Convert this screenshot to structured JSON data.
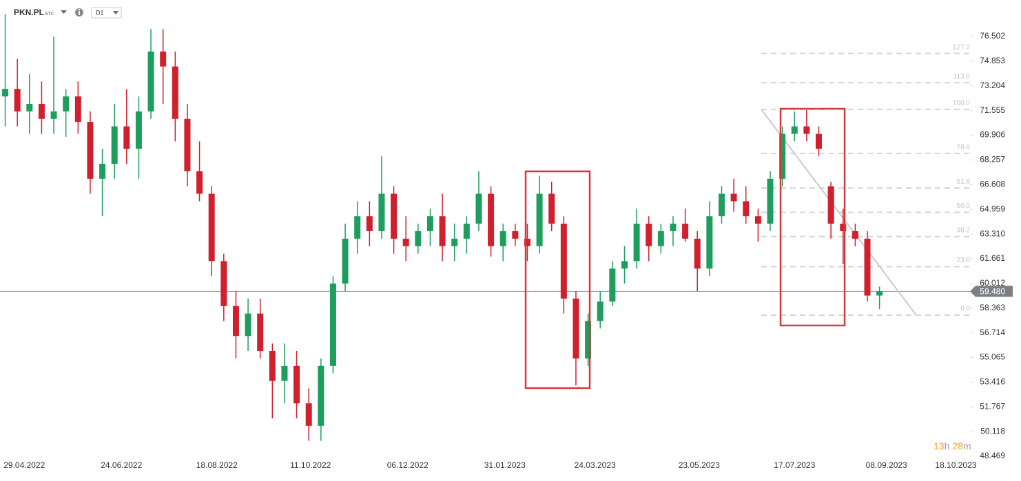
{
  "header": {
    "symbol": "PKN.PL",
    "market": "STC",
    "interval": "D1"
  },
  "chart_data": {
    "type": "candlestick",
    "x": [
      "18.04.2022",
      "25.04.2022",
      "02.05.2022",
      "09.05.2022",
      "16.05.2022",
      "23.05.2022",
      "30.05.2022",
      "06.06.2022",
      "13.06.2022",
      "20.06.2022",
      "27.06.2022",
      "04.07.2022",
      "11.07.2022",
      "18.07.2022",
      "25.07.2022",
      "01.08.2022",
      "08.08.2022",
      "15.08.2022",
      "22.08.2022",
      "29.08.2022",
      "05.09.2022",
      "12.09.2022",
      "19.09.2022",
      "26.09.2022",
      "03.10.2022",
      "10.10.2022",
      "17.10.2022",
      "24.10.2022",
      "31.10.2022",
      "07.11.2022",
      "14.11.2022",
      "21.11.2022",
      "28.11.2022",
      "05.12.2022",
      "12.12.2022",
      "19.12.2022",
      "26.12.2022",
      "02.01.2023",
      "09.01.2023",
      "16.01.2023",
      "23.01.2023",
      "30.01.2023",
      "06.02.2023",
      "13.02.2023",
      "20.02.2023",
      "27.02.2023",
      "06.03.2023",
      "13.03.2023",
      "20.03.2023",
      "27.03.2023",
      "03.04.2023",
      "10.04.2023",
      "17.04.2023",
      "24.04.2023",
      "01.05.2023",
      "08.05.2023",
      "15.05.2023",
      "22.05.2023",
      "29.05.2023",
      "05.06.2023",
      "12.06.2023",
      "19.06.2023",
      "26.06.2023",
      "03.07.2023",
      "10.07.2023",
      "17.07.2023",
      "24.07.2023",
      "31.07.2023",
      "07.08.2023",
      "14.08.2023",
      "21.08.2023",
      "28.08.2023",
      "04.09.2023"
    ],
    "open": [
      72.5,
      73,
      71.5,
      72,
      71,
      71.5,
      72.5,
      70.8,
      67,
      68,
      70.5,
      69,
      71.5,
      75.5,
      74.5,
      71,
      67.5,
      66,
      61.5,
      58.5,
      56.5,
      58,
      55.5,
      53.5,
      54.5,
      52,
      50.5,
      54.5,
      60,
      63,
      64.5,
      63.5,
      66,
      63,
      62.5,
      63.5,
      64.5,
      62.5,
      63,
      64,
      66,
      62.5,
      63.5,
      63,
      62.5,
      66,
      64,
      59,
      55,
      57.5,
      58.8,
      61,
      61.5,
      64,
      62.5,
      63.5,
      64,
      63,
      61,
      64.5,
      66,
      65.5,
      64.5,
      64,
      67,
      70,
      70.5,
      70,
      66.5,
      64,
      63.5,
      63,
      59.2
    ],
    "high": [
      78,
      75,
      74,
      73.5,
      76.5,
      73,
      73.5,
      71.5,
      69,
      72,
      73,
      72.5,
      77,
      77,
      75.5,
      72,
      69.5,
      66.5,
      62,
      59.5,
      59,
      59,
      56,
      56,
      55.5,
      53,
      55,
      60.5,
      64,
      65.5,
      65.5,
      68.5,
      66.5,
      64.5,
      64,
      65,
      66,
      64,
      64.5,
      67.5,
      66.5,
      64,
      64,
      64,
      67.2,
      66.8,
      64.5,
      59.5,
      58,
      59.5,
      61.5,
      62.5,
      65,
      64.5,
      64,
      64.5,
      65,
      63.5,
      65.5,
      66.5,
      67,
      66.5,
      65,
      67.5,
      70.5,
      71.5,
      71.6,
      70.5,
      66.8,
      65,
      64,
      63.5,
      59.8
    ],
    "low": [
      70.5,
      70.5,
      70,
      70,
      70,
      69.8,
      70,
      66,
      64.5,
      67,
      68,
      67,
      71,
      72,
      69.5,
      66.5,
      65.5,
      60.5,
      57.5,
      55,
      55.5,
      55,
      51,
      52,
      51,
      49.5,
      49.5,
      54,
      59.5,
      62,
      62.5,
      63,
      62,
      61.5,
      62,
      62.5,
      61.5,
      61.5,
      62,
      63.5,
      61.8,
      61.5,
      62.5,
      61.5,
      62,
      63.5,
      58,
      53.2,
      54.5,
      57,
      58.5,
      60,
      61,
      61.5,
      62,
      62.5,
      62.8,
      59.5,
      60.5,
      64,
      64.8,
      64,
      62.8,
      63.5,
      66.5,
      69.5,
      69.5,
      68.5,
      63,
      61.3,
      62.5,
      58.8,
      58.3
    ],
    "close": [
      73,
      71.5,
      72,
      71,
      71.5,
      72.5,
      70.8,
      67,
      68,
      70.5,
      69,
      71.5,
      75.5,
      74.5,
      71,
      67.5,
      66,
      61.5,
      58.5,
      56.5,
      58,
      55.5,
      53.5,
      54.5,
      52,
      50.5,
      54.5,
      60,
      63,
      64.5,
      63.5,
      66,
      63,
      62.5,
      63.5,
      64.5,
      62.5,
      63,
      64,
      66,
      62.5,
      63.5,
      63,
      62.5,
      66,
      64,
      59,
      55,
      57.5,
      58.8,
      61,
      61.5,
      64,
      62.5,
      63.5,
      64,
      63,
      61,
      64.5,
      66,
      65.5,
      64.5,
      64,
      67,
      70,
      70.5,
      70,
      69,
      64,
      63.5,
      63,
      59.2,
      59.48
    ],
    "up_color": "#1e9e5e",
    "down_color": "#d0202e",
    "xlim": [
      "15.04.2022",
      "23.10.2023"
    ],
    "xticks": [
      "29.04.2022",
      "24.06.2022",
      "18.08.2022",
      "11.10.2022",
      "06.12.2022",
      "31.01.2023",
      "24.03.2023",
      "23.05.2023",
      "17.07.2023",
      "08.09.2023",
      "18.10.2023"
    ],
    "ylim": [
      48.24,
      78.94
    ],
    "yticks": [
      {
        "value": 76.502,
        "label": "76.502"
      },
      {
        "value": 74.853,
        "label": "74.853"
      },
      {
        "value": 73.204,
        "label": "73.204"
      },
      {
        "value": 71.555,
        "label": "71.555"
      },
      {
        "value": 69.906,
        "label": "69.906"
      },
      {
        "value": 68.257,
        "label": "68.257"
      },
      {
        "value": 66.608,
        "label": "66.608"
      },
      {
        "value": 64.959,
        "label": "64.959"
      },
      {
        "value": 63.31,
        "label": "63.310"
      },
      {
        "value": 61.661,
        "label": "61.661"
      },
      {
        "value": 60.012,
        "label": "60.012"
      },
      {
        "value": 58.363,
        "label": "58.363"
      },
      {
        "value": 56.714,
        "label": "56.714"
      },
      {
        "value": 55.065,
        "label": "55.065"
      },
      {
        "value": 53.416,
        "label": "53.416"
      },
      {
        "value": 51.767,
        "label": "51.767"
      },
      {
        "value": 50.118,
        "label": "50.118"
      },
      {
        "value": 48.469,
        "label": "48.469"
      }
    ],
    "price_line": {
      "value": 59.48,
      "label": "59.480"
    },
    "fib_levels": [
      {
        "label": "127.2",
        "price": 75.37
      },
      {
        "label": "113.0",
        "price": 73.42
      },
      {
        "label": "100.0",
        "price": 71.63
      },
      {
        "label": "78.6",
        "price": 68.69
      },
      {
        "label": "61.8",
        "price": 66.38
      },
      {
        "label": "50.0",
        "price": 64.76
      },
      {
        "label": "38.2",
        "price": 63.14
      },
      {
        "label": "23.6",
        "price": 61.13
      },
      {
        "label": "0.0",
        "price": 57.89
      }
    ],
    "countdown": {
      "hours": "13",
      "hours_unit": "h",
      "minutes": "28",
      "minutes_unit": "m"
    }
  }
}
